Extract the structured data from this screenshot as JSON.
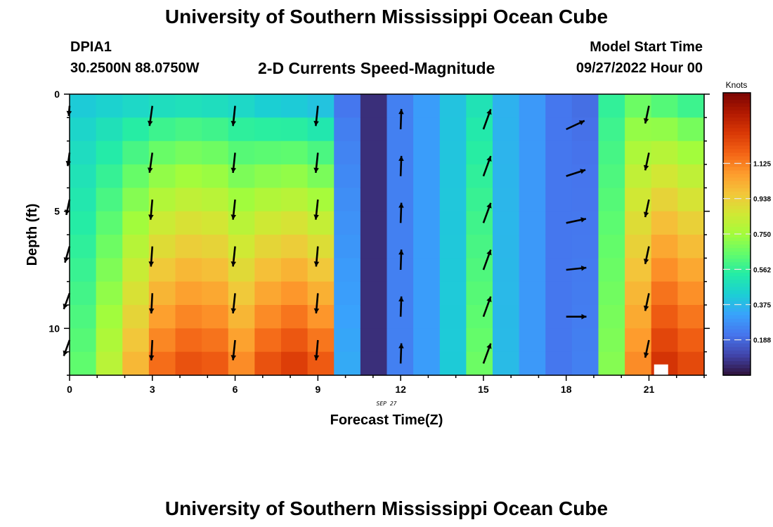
{
  "page": {
    "title_top": "University of Southern Mississippi Ocean Cube",
    "title_bottom": "University of Southern Mississippi Ocean Cube",
    "station": "DPIA1",
    "coordinates": "30.2500N  88.0750W",
    "subtitle": "2-D Currents Speed-Magnitude",
    "model_start_label": "Model Start Time",
    "model_start_value": "09/27/2022 Hour 00"
  },
  "chart_data": {
    "type": "heatmap",
    "title": "2-D Currents Speed-Magnitude",
    "xlabel": "Forecast Time(Z)",
    "ylabel": "Depth (ft)",
    "date_annotation": "SEP 27",
    "xlim": [
      0,
      23
    ],
    "ylim": [
      0,
      12
    ],
    "x_ticks": [
      0,
      3,
      6,
      9,
      12,
      15,
      18,
      21
    ],
    "y_ticks": [
      0,
      5,
      10
    ],
    "colorbar": {
      "label": "Knots",
      "range": [
        0,
        1.5
      ],
      "ticks": [
        "1.125",
        "0.938",
        "0.750",
        "0.562",
        "0.375",
        "0.188"
      ],
      "tick_values": [
        1.125,
        0.938,
        0.75,
        0.562,
        0.375,
        0.188
      ],
      "colors": [
        "#30123b",
        "#4145ab",
        "#4675ed",
        "#39a2fc",
        "#1bcfd4",
        "#24eca6",
        "#61fc6c",
        "#a4fc3b",
        "#d1e834",
        "#f3c63a",
        "#fe9b2d",
        "#f36315",
        "#d93806",
        "#b11901",
        "#7a0402"
      ]
    },
    "hours": [
      0,
      1,
      2,
      3,
      4,
      5,
      6,
      7,
      8,
      9,
      10,
      11,
      12,
      13,
      14,
      15,
      16,
      17,
      18,
      19,
      20,
      21,
      22,
      23
    ],
    "layers_ft": [
      0.5,
      1.5,
      2.5,
      3.5,
      4.5,
      5.5,
      6.5,
      7.5,
      8.5,
      9.5,
      10.5,
      11.5
    ],
    "hour_speeds_surface_bottom": [
      [
        0.42,
        0.64
      ],
      [
        0.44,
        0.8
      ],
      [
        0.46,
        1.0
      ],
      [
        0.48,
        1.16
      ],
      [
        0.49,
        1.22
      ],
      [
        0.48,
        1.2
      ],
      [
        0.46,
        1.1
      ],
      [
        0.43,
        1.22
      ],
      [
        0.42,
        1.27
      ],
      [
        0.4,
        1.2
      ],
      [
        0.22,
        0.34
      ],
      [
        0.06,
        0.06
      ],
      [
        0.24,
        0.24
      ],
      [
        0.31,
        0.31
      ],
      [
        0.4,
        0.42
      ],
      [
        0.5,
        0.66
      ],
      [
        0.36,
        0.38
      ],
      [
        0.3,
        0.3
      ],
      [
        0.22,
        0.22
      ],
      [
        0.2,
        0.24
      ],
      [
        0.56,
        0.7
      ],
      [
        0.66,
        1.1
      ],
      [
        0.62,
        1.3
      ],
      [
        0.58,
        1.24
      ]
    ],
    "vectors": [
      {
        "hour": 0,
        "depth_ft": 0.5,
        "angle_deg": 185,
        "speed": 0.45
      },
      {
        "hour": 0,
        "depth_ft": 2.5,
        "angle_deg": 188,
        "speed": 0.6
      },
      {
        "hour": 0,
        "depth_ft": 4.5,
        "angle_deg": 192,
        "speed": 0.7
      },
      {
        "hour": 0,
        "depth_ft": 6.5,
        "angle_deg": 196,
        "speed": 0.75
      },
      {
        "hour": 0,
        "depth_ft": 8.5,
        "angle_deg": 200,
        "speed": 0.75
      },
      {
        "hour": 0,
        "depth_ft": 10.5,
        "angle_deg": 200,
        "speed": 0.75
      },
      {
        "hour": 3,
        "depth_ft": 0.5,
        "angle_deg": 188,
        "speed": 0.9
      },
      {
        "hour": 3,
        "depth_ft": 2.5,
        "angle_deg": 188,
        "speed": 0.9
      },
      {
        "hour": 3,
        "depth_ft": 4.5,
        "angle_deg": 185,
        "speed": 0.9
      },
      {
        "hour": 3,
        "depth_ft": 6.5,
        "angle_deg": 184,
        "speed": 0.9
      },
      {
        "hour": 3,
        "depth_ft": 8.5,
        "angle_deg": 183,
        "speed": 0.9
      },
      {
        "hour": 3,
        "depth_ft": 10.5,
        "angle_deg": 183,
        "speed": 0.9
      },
      {
        "hour": 6,
        "depth_ft": 0.5,
        "angle_deg": 186,
        "speed": 0.9
      },
      {
        "hour": 6,
        "depth_ft": 2.5,
        "angle_deg": 186,
        "speed": 0.9
      },
      {
        "hour": 6,
        "depth_ft": 4.5,
        "angle_deg": 186,
        "speed": 0.9
      },
      {
        "hour": 6,
        "depth_ft": 6.5,
        "angle_deg": 186,
        "speed": 0.9
      },
      {
        "hour": 6,
        "depth_ft": 8.5,
        "angle_deg": 186,
        "speed": 0.9
      },
      {
        "hour": 6,
        "depth_ft": 10.5,
        "angle_deg": 186,
        "speed": 0.9
      },
      {
        "hour": 9,
        "depth_ft": 0.5,
        "angle_deg": 186,
        "speed": 0.9
      },
      {
        "hour": 9,
        "depth_ft": 2.5,
        "angle_deg": 186,
        "speed": 0.9
      },
      {
        "hour": 9,
        "depth_ft": 4.5,
        "angle_deg": 186,
        "speed": 0.9
      },
      {
        "hour": 9,
        "depth_ft": 6.5,
        "angle_deg": 185,
        "speed": 0.9
      },
      {
        "hour": 9,
        "depth_ft": 8.5,
        "angle_deg": 185,
        "speed": 0.9
      },
      {
        "hour": 9,
        "depth_ft": 10.5,
        "angle_deg": 185,
        "speed": 0.9
      },
      {
        "hour": 12,
        "depth_ft": 1.5,
        "angle_deg": 2,
        "speed": 0.9
      },
      {
        "hour": 12,
        "depth_ft": 3.5,
        "angle_deg": 2,
        "speed": 0.9
      },
      {
        "hour": 12,
        "depth_ft": 5.5,
        "angle_deg": 2,
        "speed": 0.9
      },
      {
        "hour": 12,
        "depth_ft": 7.5,
        "angle_deg": 2,
        "speed": 0.9
      },
      {
        "hour": 12,
        "depth_ft": 9.5,
        "angle_deg": 2,
        "speed": 0.9
      },
      {
        "hour": 12,
        "depth_ft": 11.5,
        "angle_deg": 2,
        "speed": 0.9
      },
      {
        "hour": 15,
        "depth_ft": 1.5,
        "angle_deg": 20,
        "speed": 0.95
      },
      {
        "hour": 15,
        "depth_ft": 3.5,
        "angle_deg": 20,
        "speed": 0.95
      },
      {
        "hour": 15,
        "depth_ft": 5.5,
        "angle_deg": 20,
        "speed": 0.95
      },
      {
        "hour": 15,
        "depth_ft": 7.5,
        "angle_deg": 20,
        "speed": 0.95
      },
      {
        "hour": 15,
        "depth_ft": 9.5,
        "angle_deg": 20,
        "speed": 0.95
      },
      {
        "hour": 15,
        "depth_ft": 11.5,
        "angle_deg": 20,
        "speed": 0.95
      },
      {
        "hour": 18,
        "depth_ft": 1.5,
        "angle_deg": 65,
        "speed": 0.9
      },
      {
        "hour": 18,
        "depth_ft": 3.5,
        "angle_deg": 72,
        "speed": 0.9
      },
      {
        "hour": 18,
        "depth_ft": 5.5,
        "angle_deg": 78,
        "speed": 0.9
      },
      {
        "hour": 18,
        "depth_ft": 7.5,
        "angle_deg": 84,
        "speed": 0.9
      },
      {
        "hour": 18,
        "depth_ft": 9.5,
        "angle_deg": 90,
        "speed": 0.9
      },
      {
        "hour": 21,
        "depth_ft": 0.5,
        "angle_deg": 192,
        "speed": 0.8
      },
      {
        "hour": 21,
        "depth_ft": 2.5,
        "angle_deg": 192,
        "speed": 0.8
      },
      {
        "hour": 21,
        "depth_ft": 4.5,
        "angle_deg": 192,
        "speed": 0.8
      },
      {
        "hour": 21,
        "depth_ft": 6.5,
        "angle_deg": 192,
        "speed": 0.8
      },
      {
        "hour": 21,
        "depth_ft": 8.5,
        "angle_deg": 192,
        "speed": 0.8
      },
      {
        "hour": 21,
        "depth_ft": 10.5,
        "angle_deg": 192,
        "speed": 0.8
      }
    ],
    "missing_cells": [
      {
        "hour": 22,
        "depth_ft": 11.5
      }
    ]
  }
}
